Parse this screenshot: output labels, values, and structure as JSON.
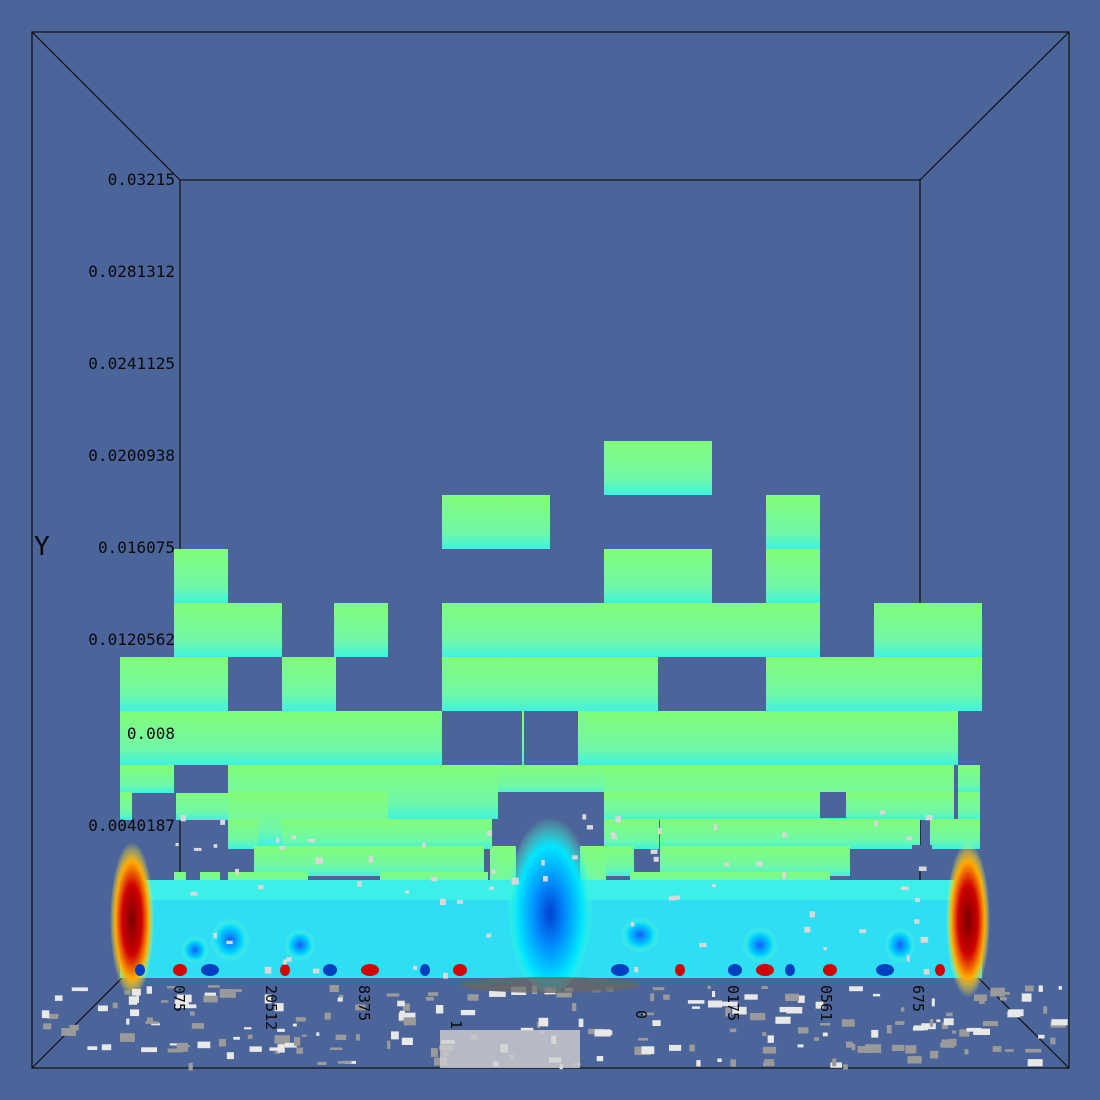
{
  "viewport": {
    "background": "#4b6499",
    "axis_title_y": "Y",
    "y_ticks": [
      "0.03215",
      "0.0281312",
      "0.0241125",
      "0.0200938",
      "0.016075",
      "0.0120562",
      "0.008",
      "0.0040187"
    ],
    "x_ticks": [
      "075",
      "20512",
      "8375",
      "1",
      "0",
      "0175",
      "0561",
      "675"
    ]
  },
  "colormap": [
    "#00009c",
    "#0050ff",
    "#00e0ff",
    "#80ffb0",
    "#ffff00",
    "#ff8000",
    "#c00000",
    "#800000"
  ],
  "voxel_color": "#7dfc7c"
}
